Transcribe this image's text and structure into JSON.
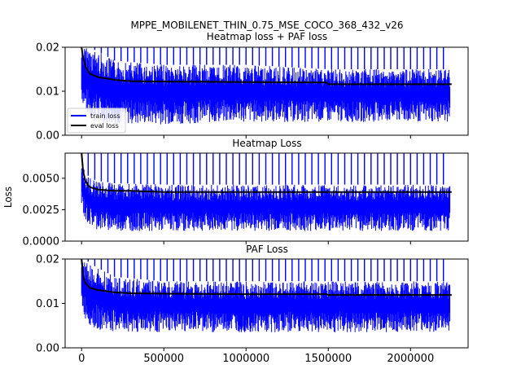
{
  "figure": {
    "suptitle": "MPPE_MOBILENET_THIN_0.75_MSE_COCO_368_432_v26",
    "ylabel": "Loss"
  },
  "chart_data": [
    {
      "type": "line",
      "title": "Heatmap loss + PAF loss",
      "xlim": [
        -100000,
        2350000
      ],
      "ylim": [
        0,
        0.02
      ],
      "yticks": [
        0.0,
        0.01,
        0.02
      ],
      "ytick_labels": [
        "0.00",
        "0.01",
        "0.02"
      ],
      "xticks": [
        0,
        500000,
        1000000,
        1500000,
        2000000
      ],
      "xtick_labels": [],
      "legend": {
        "position": "lower-left",
        "entries": [
          "train loss",
          "eval loss"
        ]
      },
      "train_band": {
        "x": [
          0,
          25000,
          50000,
          100000,
          200000,
          500000,
          1000000,
          1500000,
          2000000,
          2240000
        ],
        "low": [
          0.008,
          0.005,
          0.004,
          0.003,
          0.0025,
          0.0025,
          0.003,
          0.003,
          0.003,
          0.003
        ],
        "high": [
          0.02,
          0.02,
          0.02,
          0.019,
          0.017,
          0.016,
          0.016,
          0.015,
          0.015,
          0.015
        ],
        "spike_peak": 0.02
      },
      "series": [
        {
          "name": "eval loss",
          "x": [
            0,
            10000,
            25000,
            50000,
            100000,
            200000,
            300000,
            500000,
            1000000,
            1490000,
            1500000,
            2000000,
            2250000
          ],
          "y": [
            0.02,
            0.0175,
            0.0155,
            0.014,
            0.0132,
            0.0126,
            0.0123,
            0.0122,
            0.0121,
            0.012,
            0.0116,
            0.0116,
            0.0116
          ]
        }
      ]
    },
    {
      "type": "line",
      "title": "Heatmap Loss",
      "xlim": [
        -100000,
        2350000
      ],
      "ylim": [
        0,
        0.007
      ],
      "yticks": [
        0.0,
        0.0025,
        0.005
      ],
      "ytick_labels": [
        "0.0000",
        "0.0025",
        "0.0050"
      ],
      "xticks": [
        0,
        500000,
        1000000,
        1500000,
        2000000
      ],
      "xtick_labels": [],
      "train_band": {
        "x": [
          0,
          25000,
          50000,
          100000,
          200000,
          500000,
          1000000,
          1500000,
          2000000,
          2240000
        ],
        "low": [
          0.0025,
          0.0015,
          0.0012,
          0.0009,
          0.0008,
          0.0008,
          0.0008,
          0.0008,
          0.0008,
          0.0008
        ],
        "high": [
          0.007,
          0.0055,
          0.005,
          0.0048,
          0.0046,
          0.0045,
          0.0045,
          0.0045,
          0.0045,
          0.0045
        ],
        "spike_peak": 0.007
      },
      "series": [
        {
          "name": "eval loss",
          "x": [
            0,
            10000,
            25000,
            50000,
            100000,
            200000,
            300000,
            500000,
            1000000,
            1500000,
            2000000,
            2250000
          ],
          "y": [
            0.007,
            0.0055,
            0.0047,
            0.0043,
            0.0041,
            0.004,
            0.004,
            0.0039,
            0.0039,
            0.0039,
            0.0039,
            0.0039
          ]
        }
      ]
    },
    {
      "type": "line",
      "title": "PAF Loss",
      "xlim": [
        -100000,
        2350000
      ],
      "ylim": [
        0,
        0.02
      ],
      "yticks": [
        0.0,
        0.01,
        0.02
      ],
      "ytick_labels": [
        "0.00",
        "0.01",
        "0.02"
      ],
      "xticks": [
        0,
        500000,
        1000000,
        1500000,
        2000000
      ],
      "xtick_labels": [
        "0",
        "500000",
        "1000000",
        "1500000",
        "2000000"
      ],
      "train_band": {
        "x": [
          0,
          25000,
          50000,
          100000,
          200000,
          500000,
          1000000,
          1500000,
          2000000,
          2240000
        ],
        "low": [
          0.009,
          0.006,
          0.005,
          0.004,
          0.0035,
          0.0035,
          0.0035,
          0.0035,
          0.0035,
          0.0035
        ],
        "high": [
          0.02,
          0.02,
          0.019,
          0.018,
          0.016,
          0.015,
          0.015,
          0.015,
          0.015,
          0.015
        ],
        "spike_peak": 0.02
      },
      "series": [
        {
          "name": "eval loss",
          "x": [
            0,
            10000,
            25000,
            50000,
            100000,
            200000,
            300000,
            500000,
            1000000,
            1490000,
            1500000,
            2000000,
            2250000
          ],
          "y": [
            0.02,
            0.016,
            0.0145,
            0.0135,
            0.013,
            0.0125,
            0.0123,
            0.0122,
            0.0121,
            0.0121,
            0.0119,
            0.0119,
            0.0119
          ]
        }
      ]
    }
  ],
  "colors": {
    "train": "#0000ff",
    "eval": "#000000",
    "axis": "#000000"
  }
}
